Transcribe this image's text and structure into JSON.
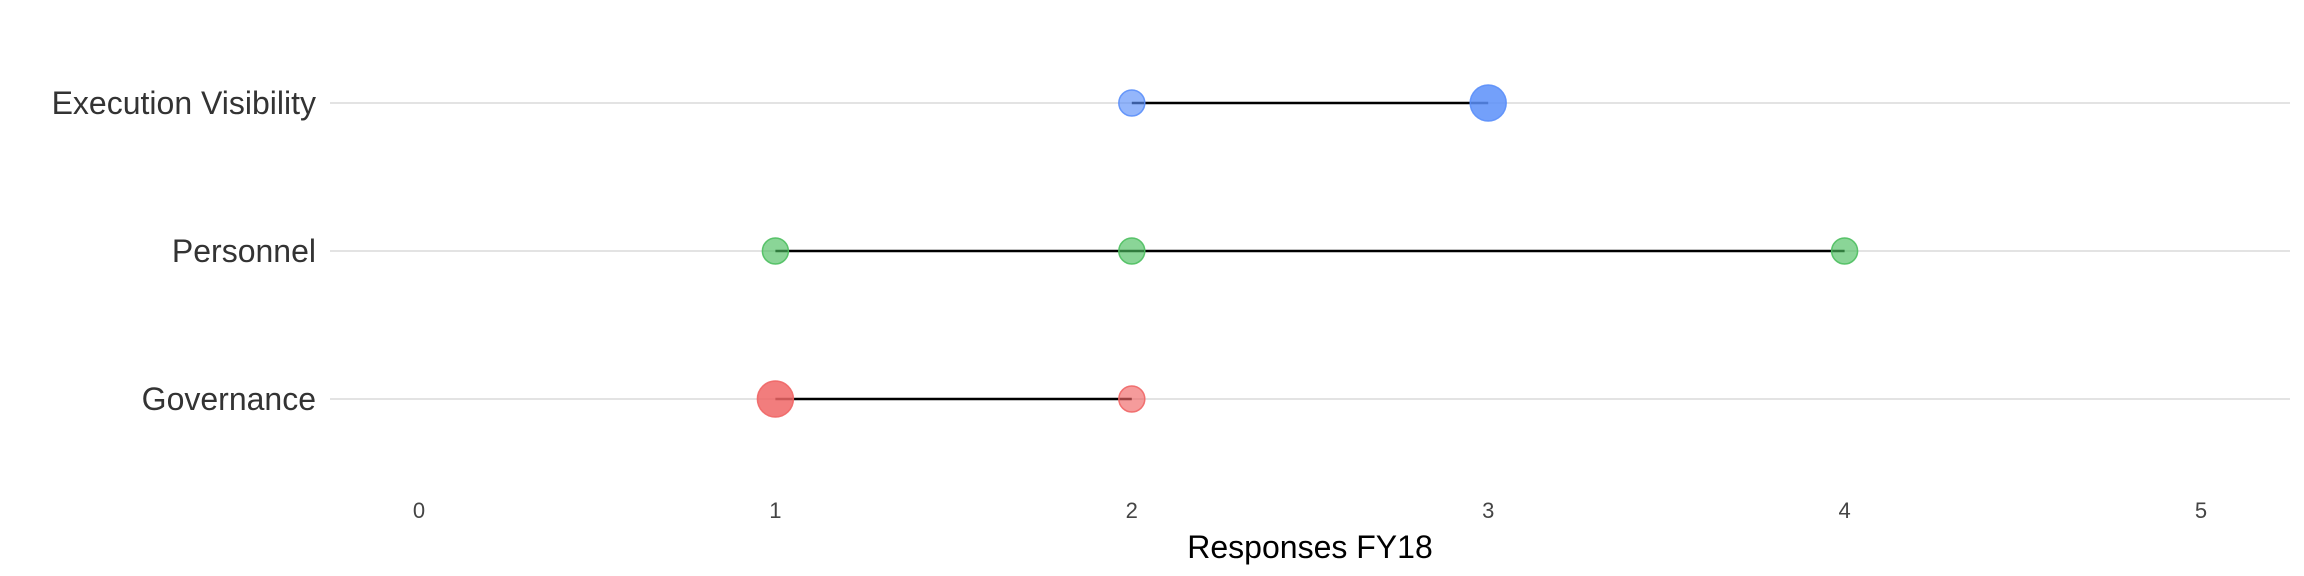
{
  "chart_data": {
    "type": "scatter",
    "subtype": "dumbbell",
    "xlabel": "Responses FY18",
    "xlim": [
      0,
      5
    ],
    "x_ticks": [
      0,
      1,
      2,
      3,
      4,
      5
    ],
    "x_tick_labels": [
      "0",
      "1",
      "2",
      "3",
      "4",
      "5"
    ],
    "categories": [
      "Execution Visibility",
      "Personnel",
      "Governance"
    ],
    "grid": "horizontal",
    "rows": [
      {
        "category": "Execution Visibility",
        "color": "#5B8FF9",
        "points": [
          {
            "x": 2,
            "size": 1
          },
          {
            "x": 3,
            "size": 2
          }
        ],
        "range": [
          2,
          3
        ]
      },
      {
        "category": "Personnel",
        "color": "#4CBF5F",
        "points": [
          {
            "x": 1,
            "size": 1
          },
          {
            "x": 2,
            "size": 1
          },
          {
            "x": 4,
            "size": 1
          }
        ],
        "range": [
          1,
          4
        ]
      },
      {
        "category": "Governance",
        "color": "#F06666",
        "points": [
          {
            "x": 1,
            "size": 2
          },
          {
            "x": 2,
            "size": 1
          }
        ],
        "range": [
          1,
          2
        ]
      }
    ]
  }
}
